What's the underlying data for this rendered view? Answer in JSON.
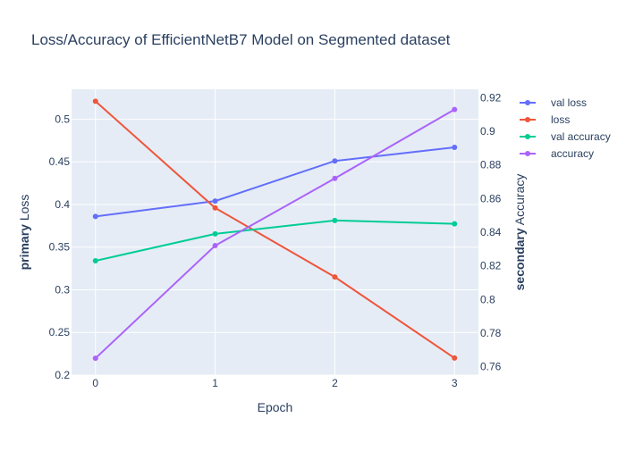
{
  "chart_data": {
    "type": "line",
    "title": "Loss/Accuracy of EfficientNetB7 Model on Segmented dataset",
    "xlabel": "Epoch",
    "ylabel_bold": "primary",
    "ylabel": "Loss",
    "y2label_bold": "secondary",
    "y2label": "Accuracy",
    "x": [
      0,
      1,
      2,
      3
    ],
    "x_ticks": [
      "0",
      "1",
      "2",
      "3"
    ],
    "xlim": [
      -0.2,
      3.2
    ],
    "ylim": [
      0.2,
      0.535
    ],
    "y_ticks": [
      0.2,
      0.25,
      0.3,
      0.35,
      0.4,
      0.45,
      0.5
    ],
    "y_tick_labels": [
      "0.2",
      "0.25",
      "0.3",
      "0.35",
      "0.4",
      "0.45",
      "0.5"
    ],
    "y2lim": [
      0.755,
      0.925
    ],
    "y2_ticks": [
      0.76,
      0.78,
      0.8,
      0.82,
      0.84,
      0.86,
      0.88,
      0.9,
      0.92
    ],
    "y2_tick_labels": [
      "0.76",
      "0.78",
      "0.8",
      "0.82",
      "0.84",
      "0.86",
      "0.88",
      "0.9",
      "0.92"
    ],
    "grid": true,
    "legend_position": "top-right, outside plot",
    "series": [
      {
        "name": "val loss",
        "axis": "primary",
        "color": "#636efa",
        "values": [
          0.386,
          0.404,
          0.451,
          0.467
        ]
      },
      {
        "name": "loss",
        "axis": "primary",
        "color": "#ef553b",
        "values": [
          0.521,
          0.396,
          0.315,
          0.22
        ]
      },
      {
        "name": "val accuracy",
        "axis": "secondary",
        "color": "#00cc96",
        "values": [
          0.823,
          0.839,
          0.847,
          0.845
        ]
      },
      {
        "name": "accuracy",
        "axis": "secondary",
        "color": "#ab63fa",
        "values": [
          0.765,
          0.832,
          0.872,
          0.913
        ]
      }
    ],
    "colors": {
      "plot_background": "#e5ecf6",
      "grid": "#ffffff",
      "text": "#2a3f5f"
    }
  }
}
